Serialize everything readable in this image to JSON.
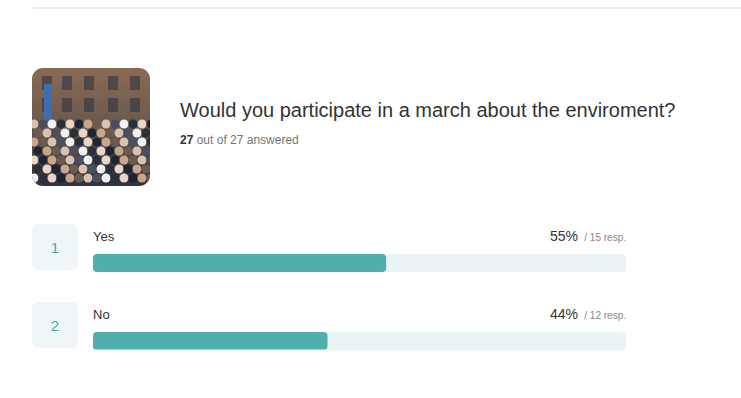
{
  "chart_data": {
    "type": "bar",
    "orientation": "horizontal",
    "title": "Would you participate in a march about the enviroment?",
    "subtitle": "27 out of 27 answered",
    "ranks": [
      1,
      2
    ],
    "categories": [
      "Yes",
      "No"
    ],
    "values": [
      55,
      44
    ],
    "value_labels": [
      "55%",
      "44%"
    ],
    "responses": [
      15,
      12
    ],
    "response_labels": [
      "/ 15 resp.",
      "/ 12 resp."
    ],
    "xlim": [
      0,
      100
    ],
    "color": "#4fafaa",
    "data_labels": true,
    "tick_labels": false,
    "grid": false
  }
}
